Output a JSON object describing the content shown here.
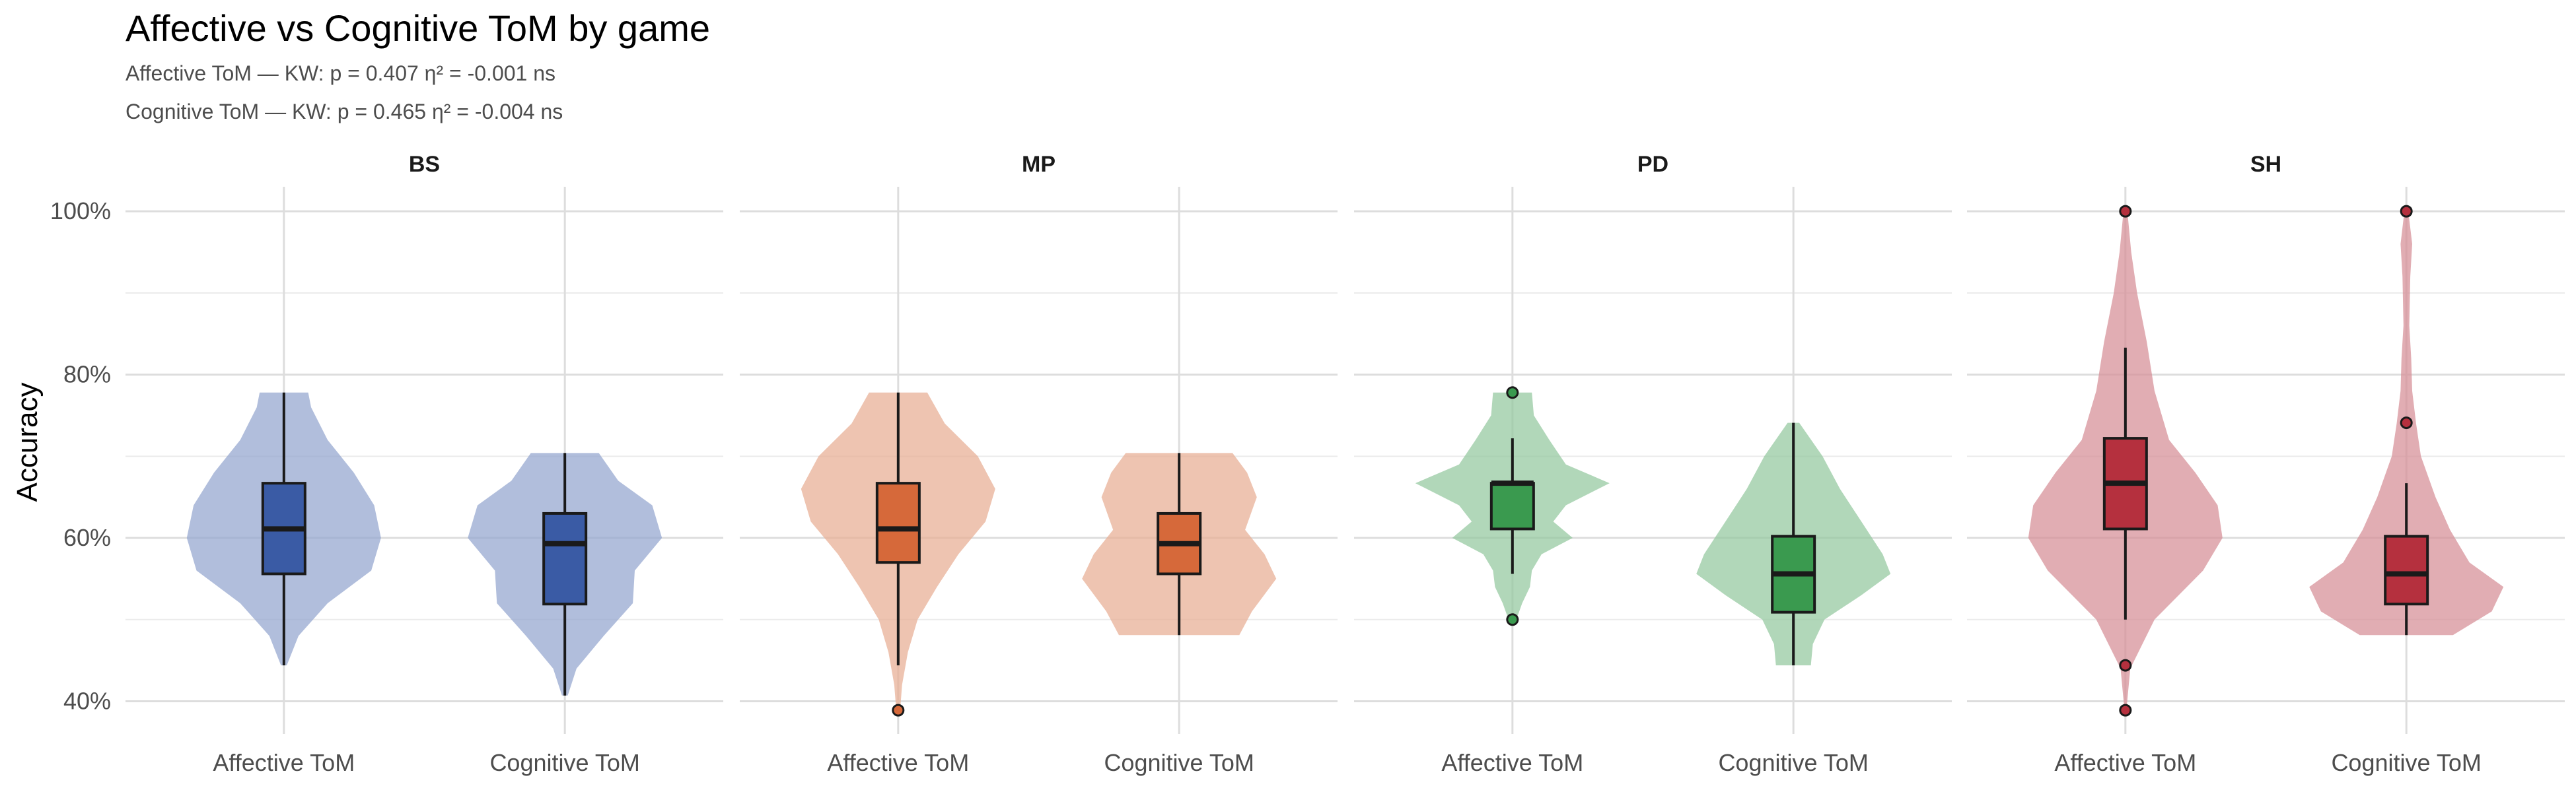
{
  "chart_data": {
    "type": "violin",
    "title": "Affective vs Cognitive ToM by game",
    "subtitles": [
      "Affective ToM — KW: p = 0.407  η² = -0.001  ns",
      "Cognitive ToM — KW: p = 0.465  η² = -0.004  ns"
    ],
    "ylabel": "Accuracy",
    "xlabel": "",
    "ylim": [
      0.36,
      1.03
    ],
    "yticks": [
      0.4,
      0.6,
      0.8,
      1.0
    ],
    "ytick_labels": [
      "40%",
      "60%",
      "80%",
      "100%"
    ],
    "grid": true,
    "legend": "none",
    "categories": [
      "Affective ToM",
      "Cognitive ToM"
    ],
    "facets": [
      {
        "name": "BS",
        "color": "#3a5ba5",
        "groups": [
          {
            "category": "Affective ToM",
            "violin_range": [
              0.444,
              0.778
            ],
            "violin_profile": [
              [
                0.444,
                0.03
              ],
              [
                0.48,
                0.15
              ],
              [
                0.52,
                0.45
              ],
              [
                0.56,
                0.9
              ],
              [
                0.6,
                1.0
              ],
              [
                0.64,
                0.93
              ],
              [
                0.68,
                0.72
              ],
              [
                0.72,
                0.45
              ],
              [
                0.76,
                0.28
              ],
              [
                0.778,
                0.25
              ]
            ],
            "box": {
              "q1": 0.556,
              "median": 0.611,
              "q3": 0.667,
              "whisker_low": 0.444,
              "whisker_high": 0.778
            },
            "outliers": []
          },
          {
            "category": "Cognitive ToM",
            "violin_range": [
              0.407,
              0.704
            ],
            "violin_profile": [
              [
                0.407,
                0.03
              ],
              [
                0.44,
                0.12
              ],
              [
                0.48,
                0.4
              ],
              [
                0.52,
                0.7
              ],
              [
                0.56,
                0.72
              ],
              [
                0.6,
                1.0
              ],
              [
                0.64,
                0.9
              ],
              [
                0.67,
                0.55
              ],
              [
                0.704,
                0.35
              ]
            ],
            "box": {
              "q1": 0.519,
              "median": 0.593,
              "q3": 0.63,
              "whisker_low": 0.407,
              "whisker_high": 0.704
            },
            "outliers": []
          }
        ]
      },
      {
        "name": "MP",
        "color": "#d6693a",
        "groups": [
          {
            "category": "Affective ToM",
            "violin_range": [
              0.389,
              0.778
            ],
            "violin_profile": [
              [
                0.389,
                0.02
              ],
              [
                0.42,
                0.04
              ],
              [
                0.46,
                0.1
              ],
              [
                0.5,
                0.2
              ],
              [
                0.54,
                0.4
              ],
              [
                0.58,
                0.62
              ],
              [
                0.62,
                0.9
              ],
              [
                0.66,
                1.0
              ],
              [
                0.7,
                0.82
              ],
              [
                0.74,
                0.48
              ],
              [
                0.778,
                0.3
              ]
            ],
            "box": {
              "q1": 0.57,
              "median": 0.611,
              "q3": 0.667,
              "whisker_low": 0.444,
              "whisker_high": 0.778
            },
            "outliers": [
              0.389
            ]
          },
          {
            "category": "Cognitive ToM",
            "violin_range": [
              0.481,
              0.704
            ],
            "violin_profile": [
              [
                0.481,
                0.62
              ],
              [
                0.51,
                0.75
              ],
              [
                0.55,
                1.0
              ],
              [
                0.58,
                0.88
              ],
              [
                0.61,
                0.68
              ],
              [
                0.65,
                0.8
              ],
              [
                0.68,
                0.7
              ],
              [
                0.704,
                0.55
              ]
            ],
            "box": {
              "q1": 0.556,
              "median": 0.593,
              "q3": 0.63,
              "whisker_low": 0.481,
              "whisker_high": 0.704
            },
            "outliers": []
          }
        ]
      },
      {
        "name": "PD",
        "color": "#3a9a4f",
        "groups": [
          {
            "category": "Affective ToM",
            "violin_range": [
              0.5,
              0.778
            ],
            "violin_profile": [
              [
                0.5,
                0.04
              ],
              [
                0.52,
                0.1
              ],
              [
                0.54,
                0.18
              ],
              [
                0.56,
                0.2
              ],
              [
                0.58,
                0.3
              ],
              [
                0.6,
                0.62
              ],
              [
                0.62,
                0.42
              ],
              [
                0.64,
                0.55
              ],
              [
                0.667,
                1.0
              ],
              [
                0.69,
                0.55
              ],
              [
                0.72,
                0.38
              ],
              [
                0.75,
                0.22
              ],
              [
                0.778,
                0.2
              ]
            ],
            "box": {
              "q1": 0.611,
              "median": 0.667,
              "q3": 0.667,
              "whisker_low": 0.556,
              "whisker_high": 0.722
            },
            "outliers": [
              0.5,
              0.778
            ]
          },
          {
            "category": "Cognitive ToM",
            "violin_range": [
              0.444,
              0.741
            ],
            "violin_profile": [
              [
                0.444,
                0.18
              ],
              [
                0.47,
                0.2
              ],
              [
                0.5,
                0.32
              ],
              [
                0.53,
                0.7
              ],
              [
                0.556,
                1.0
              ],
              [
                0.58,
                0.92
              ],
              [
                0.62,
                0.7
              ],
              [
                0.66,
                0.48
              ],
              [
                0.7,
                0.3
              ],
              [
                0.741,
                0.06
              ]
            ],
            "box": {
              "q1": 0.509,
              "median": 0.556,
              "q3": 0.602,
              "whisker_low": 0.444,
              "whisker_high": 0.741
            },
            "outliers": []
          }
        ]
      },
      {
        "name": "SH",
        "color": "#b5303e",
        "groups": [
          {
            "category": "Affective ToM",
            "violin_range": [
              0.389,
              1.0
            ],
            "violin_profile": [
              [
                0.389,
                0.01
              ],
              [
                0.44,
                0.05
              ],
              [
                0.5,
                0.3
              ],
              [
                0.56,
                0.8
              ],
              [
                0.6,
                1.0
              ],
              [
                0.64,
                0.95
              ],
              [
                0.68,
                0.72
              ],
              [
                0.72,
                0.45
              ],
              [
                0.78,
                0.3
              ],
              [
                0.84,
                0.22
              ],
              [
                0.9,
                0.12
              ],
              [
                0.95,
                0.06
              ],
              [
                1.0,
                0.02
              ]
            ],
            "box": {
              "q1": 0.611,
              "median": 0.667,
              "q3": 0.722,
              "whisker_low": 0.5,
              "whisker_high": 0.833
            },
            "outliers": [
              0.389,
              0.444,
              1.0
            ]
          },
          {
            "category": "Cognitive ToM",
            "violin_range": [
              0.481,
              1.0
            ],
            "violin_profile": [
              [
                0.481,
                0.48
              ],
              [
                0.51,
                0.88
              ],
              [
                0.54,
                1.0
              ],
              [
                0.57,
                0.65
              ],
              [
                0.61,
                0.45
              ],
              [
                0.65,
                0.3
              ],
              [
                0.7,
                0.15
              ],
              [
                0.74,
                0.1
              ],
              [
                0.78,
                0.06
              ],
              [
                0.82,
                0.05
              ],
              [
                0.86,
                0.03
              ],
              [
                0.92,
                0.04
              ],
              [
                0.96,
                0.06
              ],
              [
                1.0,
                0.02
              ]
            ],
            "box": {
              "q1": 0.519,
              "median": 0.556,
              "q3": 0.602,
              "whisker_low": 0.481,
              "whisker_high": 0.667
            },
            "outliers": [
              0.741,
              1.0
            ]
          }
        ]
      }
    ]
  }
}
